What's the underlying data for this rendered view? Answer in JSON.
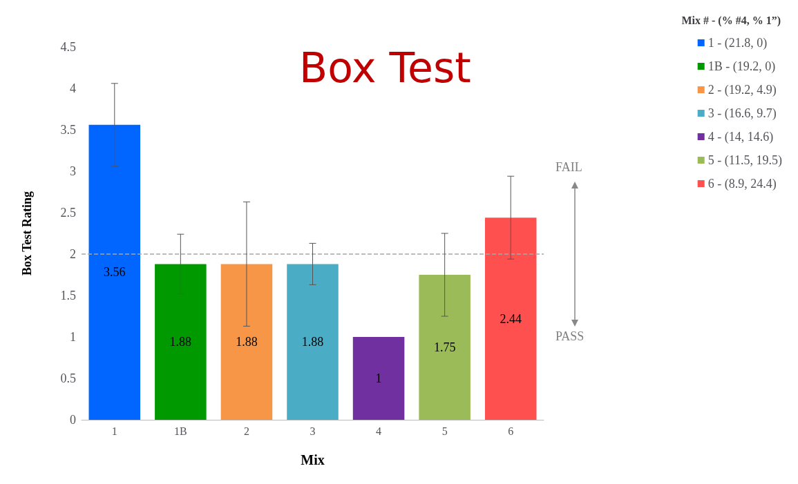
{
  "chart_data": {
    "type": "bar",
    "title": "Box Test",
    "xlabel": "Mix",
    "ylabel": "Box Test Rating",
    "legend_title": "Mix # - (% #4, % 1”)",
    "categories": [
      "1",
      "1B",
      "2",
      "3",
      "4",
      "5",
      "6"
    ],
    "series": [
      {
        "name": "1 - (21.8, 0)",
        "color": "#0066ff",
        "values": [
          3.56,
          null,
          null,
          null,
          null,
          null,
          null
        ],
        "errors": [
          0.5,
          null,
          null,
          null,
          null,
          null,
          null
        ]
      },
      {
        "name": "1B - (19.2, 0)",
        "color": "#009900",
        "values": [
          null,
          1.88,
          null,
          null,
          null,
          null,
          null
        ],
        "errors": [
          null,
          0.36,
          null,
          null,
          null,
          null,
          null
        ]
      },
      {
        "name": "2 - (19.2, 4.9)",
        "color": "#f79646",
        "values": [
          null,
          null,
          1.88,
          null,
          null,
          null,
          null
        ],
        "errors": [
          null,
          null,
          0.75,
          null,
          null,
          null,
          null
        ]
      },
      {
        "name": "3 - (16.6, 9.7)",
        "color": "#4bacc6",
        "values": [
          null,
          null,
          null,
          1.88,
          null,
          null,
          null
        ],
        "errors": [
          null,
          null,
          null,
          0.25,
          null,
          null,
          null
        ]
      },
      {
        "name": "4 - (14, 14.6)",
        "color": "#7030a0",
        "values": [
          null,
          null,
          null,
          null,
          1,
          null,
          null
        ]
      },
      {
        "name": "5 - (11.5, 19.5)",
        "color": "#9bbb59",
        "values": [
          null,
          null,
          null,
          null,
          null,
          1.75,
          null
        ],
        "errors": [
          null,
          null,
          null,
          null,
          null,
          0.5,
          null
        ]
      },
      {
        "name": "6 - (8.9, 24.4)",
        "color": "#ff5050",
        "values": [
          null,
          null,
          null,
          null,
          null,
          null,
          2.44
        ],
        "errors": [
          null,
          null,
          null,
          null,
          null,
          null,
          0.5
        ]
      }
    ],
    "ylim": [
      0,
      4.5
    ],
    "yticks": [
      0,
      0.5,
      1,
      1.5,
      2,
      2.5,
      3,
      3.5,
      4,
      4.5
    ],
    "ref_lines": [
      {
        "axis": "y",
        "value": 2,
        "color": "#a6a6a6",
        "line_style": "dashed"
      }
    ],
    "annotations": [
      "FAIL",
      "PASS"
    ],
    "data_labels": true,
    "grid": false,
    "legend": "right"
  }
}
